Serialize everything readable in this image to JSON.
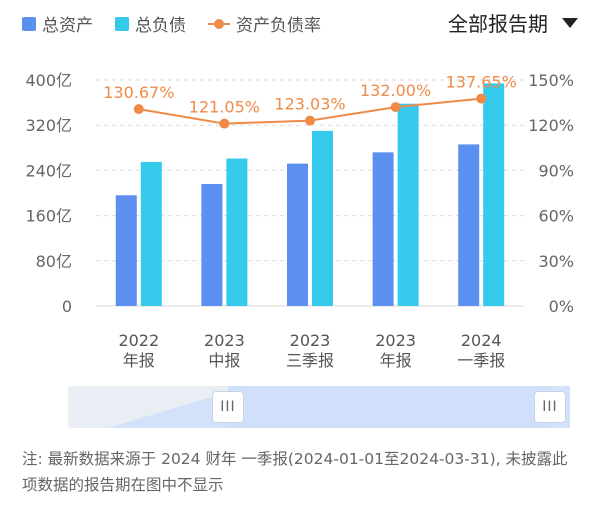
{
  "legend": {
    "total_assets": "总资产",
    "total_liabilities": "总负债",
    "debt_ratio": "资产负债率"
  },
  "period_selector": {
    "label": "全部报告期"
  },
  "colors": {
    "assets": "#5b8ff0",
    "liabilities": "#35c9ec",
    "ratio": "#ef8a47",
    "grid": "#d9d9d9"
  },
  "chart_data": {
    "type": "bar",
    "categories": [
      [
        "2022",
        "年报"
      ],
      [
        "2023",
        "中报"
      ],
      [
        "2023",
        "三季报"
      ],
      [
        "2023",
        "年报"
      ],
      [
        "2024",
        "一季报"
      ]
    ],
    "series": [
      {
        "name": "总资产",
        "axis": "left",
        "values": [
          196,
          216,
          252,
          272,
          286
        ]
      },
      {
        "name": "总负债",
        "axis": "left",
        "values": [
          255,
          261,
          310,
          358,
          394
        ]
      },
      {
        "name": "资产负债率",
        "axis": "right",
        "type": "line",
        "values": [
          130.67,
          121.05,
          123.03,
          132.0,
          137.65
        ],
        "labels": [
          "130.67%",
          "121.05%",
          "123.03%",
          "132.00%",
          "137.65%"
        ]
      }
    ],
    "y_left": {
      "min": 0,
      "max": 400,
      "ticks": [
        0,
        80,
        160,
        240,
        320,
        400
      ],
      "tick_labels": [
        "0",
        "80亿",
        "160亿",
        "240亿",
        "320亿",
        "400亿"
      ]
    },
    "y_right": {
      "min": 0,
      "max": 150,
      "ticks": [
        0,
        30,
        60,
        90,
        120,
        150
      ],
      "tick_labels": [
        "0%",
        "30%",
        "60%",
        "90%",
        "120%",
        "150%"
      ]
    },
    "grid": true
  },
  "zoom": {
    "left_handle": "III",
    "right_handle": "III"
  },
  "note": "注: 最新数据来源于 2024 财年 一季报(2024-01-01至2024-03-31), 未披露此项数据的报告期在图中不显示"
}
